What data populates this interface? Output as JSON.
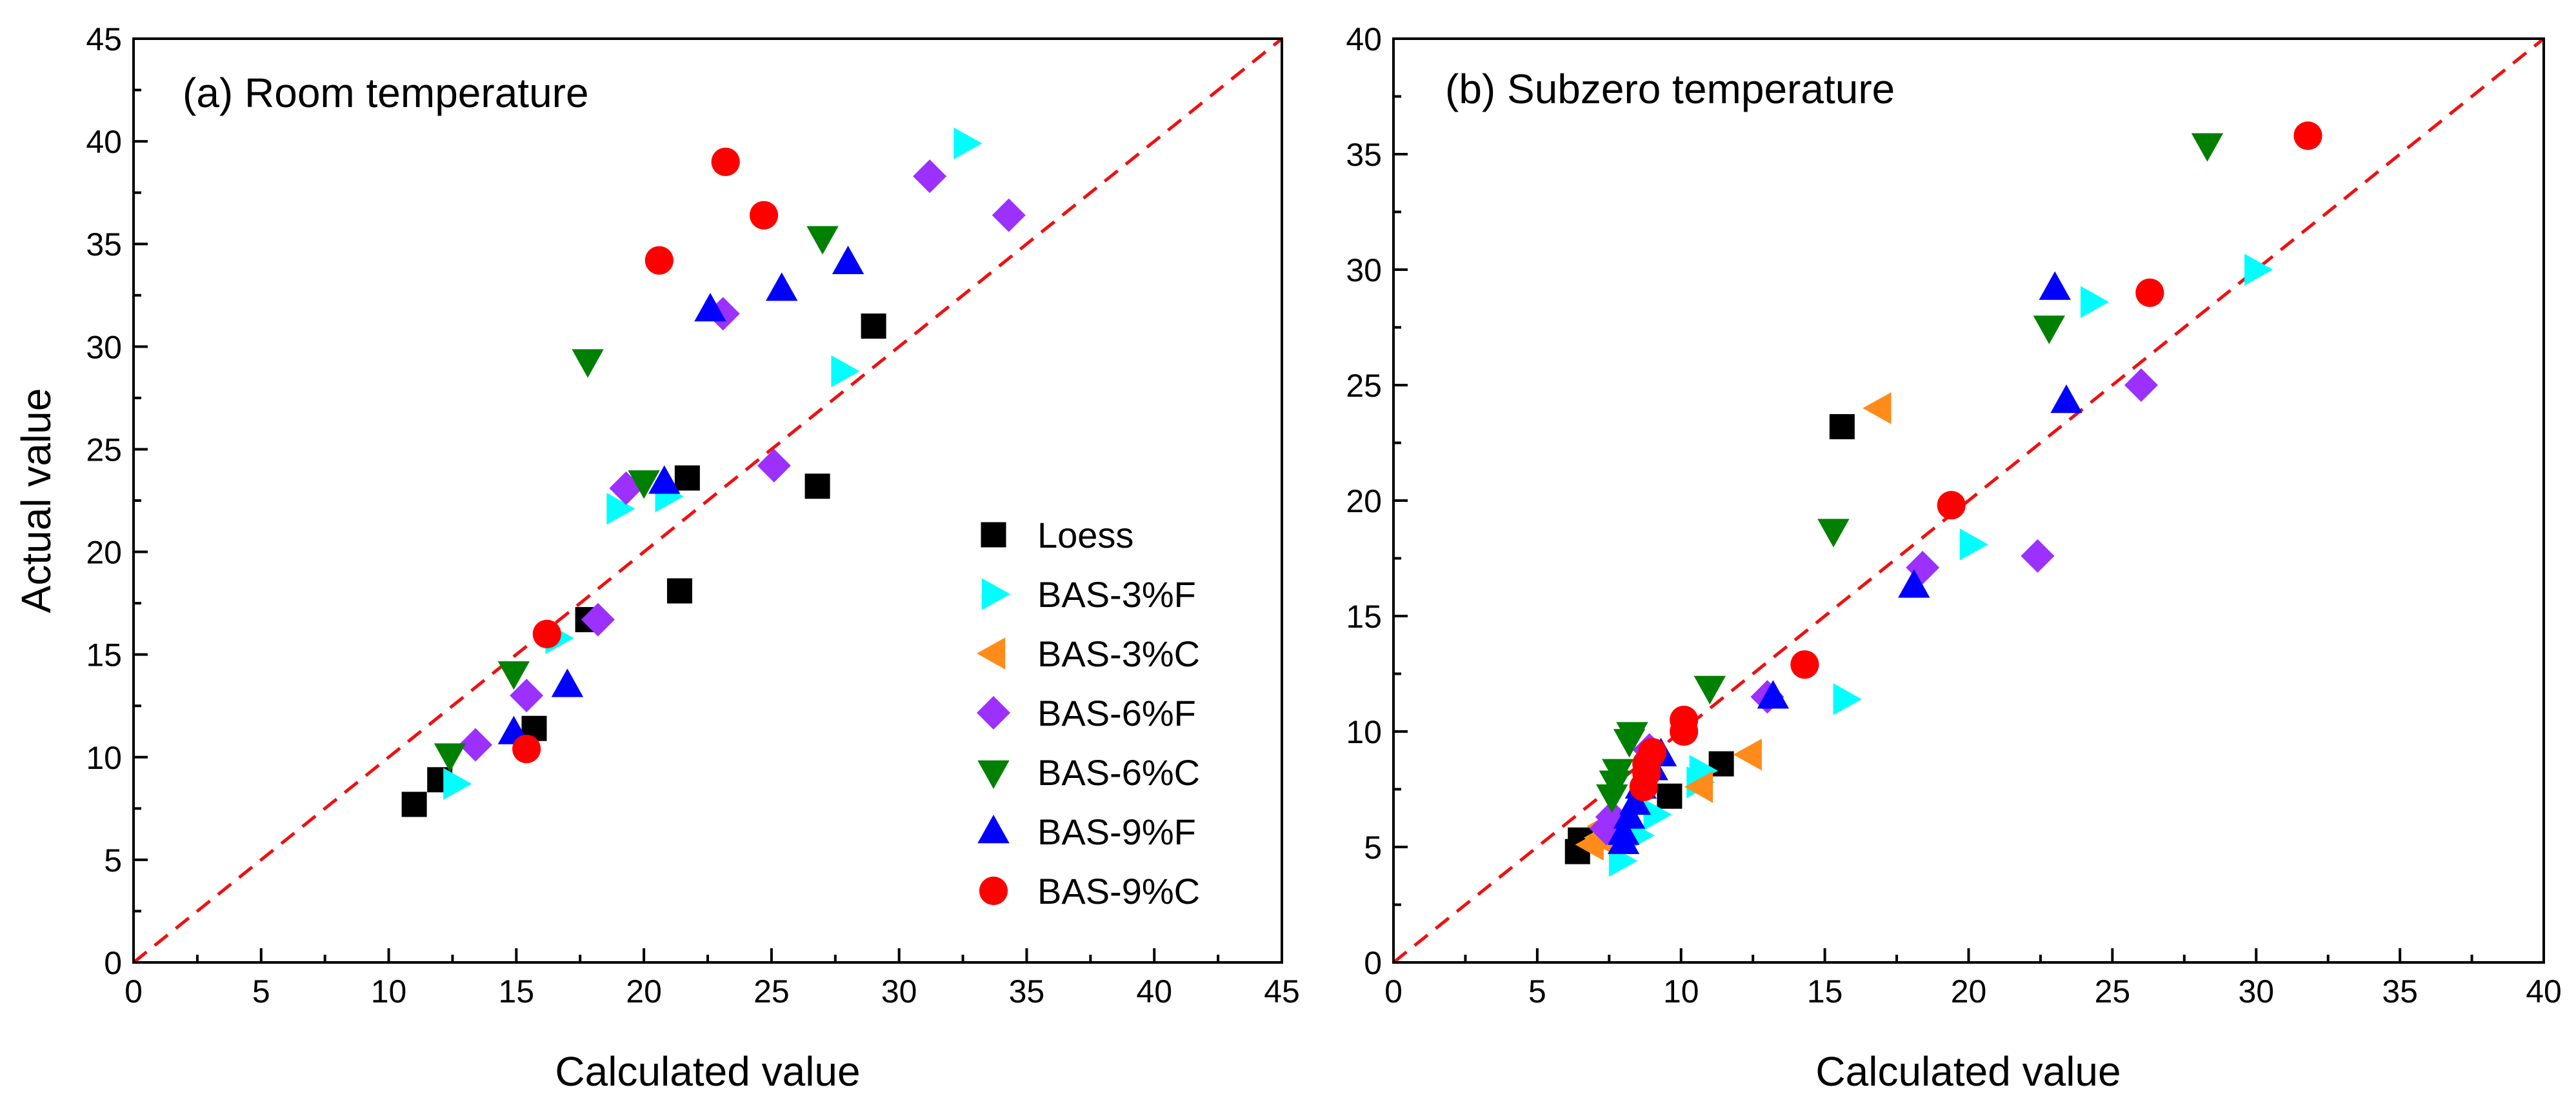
{
  "chart_data": [
    {
      "type": "scatter",
      "panel": "a",
      "title": "(a) Room temperature",
      "xlabel": "Calculated value",
      "ylabel": "Actual value",
      "xlim": [
        0,
        45
      ],
      "ylim": [
        0,
        45
      ],
      "xticks": [
        0,
        5,
        10,
        15,
        20,
        25,
        30,
        35,
        40,
        45
      ],
      "yticks": [
        0,
        5,
        10,
        15,
        20,
        25,
        30,
        35,
        40,
        45
      ],
      "reference_line": {
        "x": [
          0,
          45
        ],
        "y": [
          0,
          45
        ],
        "style": "dashed",
        "color": "#ee1111"
      },
      "grid": false,
      "legend": {
        "position": "bottom-right"
      },
      "series": [
        {
          "name": "Loess",
          "marker": "square",
          "color": "#000000",
          "points": [
            [
              11,
              7.7
            ],
            [
              12,
              8.9
            ],
            [
              15.7,
              11.4
            ],
            [
              17.8,
              16.7
            ],
            [
              21.4,
              18.1
            ],
            [
              21.7,
              23.6
            ],
            [
              26.8,
              23.2
            ],
            [
              29,
              31
            ]
          ]
        },
        {
          "name": "BAS-3%F",
          "marker": "triangle-right",
          "color": "#00ffff",
          "points": [
            [
              12.6,
              8.7
            ],
            [
              16.6,
              15.8
            ],
            [
              19,
              22.1
            ],
            [
              20.9,
              22.7
            ],
            [
              27.8,
              28.8
            ],
            [
              32.6,
              39.9
            ]
          ]
        },
        {
          "name": "BAS-3%C",
          "marker": "triangle-left",
          "color": "#ff8c1a",
          "points": []
        },
        {
          "name": "BAS-6%F",
          "marker": "diamond",
          "color": "#9b30ff",
          "points": [
            [
              13.4,
              10.6
            ],
            [
              15.4,
              13
            ],
            [
              18.2,
              16.7
            ],
            [
              19.3,
              23.1
            ],
            [
              23.1,
              31.6
            ],
            [
              25.1,
              24.2
            ],
            [
              31.2,
              38.3
            ],
            [
              34.3,
              36.4
            ]
          ]
        },
        {
          "name": "BAS-6%C",
          "marker": "triangle-down",
          "color": "#008000",
          "points": [
            [
              12.4,
              10.1
            ],
            [
              14.9,
              14.1
            ],
            [
              17.8,
              29.3
            ],
            [
              20,
              23.4
            ],
            [
              27,
              35.3
            ]
          ]
        },
        {
          "name": "BAS-9%F",
          "marker": "triangle-up",
          "color": "#0000ff",
          "points": [
            [
              14.9,
              11.2
            ],
            [
              17,
              13.5
            ],
            [
              20.8,
              23.4
            ],
            [
              22.6,
              31.8
            ],
            [
              25.4,
              32.8
            ],
            [
              28,
              34.1
            ]
          ]
        },
        {
          "name": "BAS-9%C",
          "marker": "circle",
          "color": "#ff0000",
          "points": [
            [
              15.4,
              10.4
            ],
            [
              16.2,
              16
            ],
            [
              20.6,
              34.2
            ],
            [
              23.2,
              39
            ],
            [
              24.7,
              36.4
            ]
          ]
        }
      ]
    },
    {
      "type": "scatter",
      "panel": "b",
      "title": "(b) Subzero temperature",
      "xlabel": "Calculated value",
      "ylabel": "",
      "xlim": [
        0,
        40
      ],
      "ylim": [
        0,
        40
      ],
      "xticks": [
        0,
        5,
        10,
        15,
        20,
        25,
        30,
        35,
        40
      ],
      "yticks": [
        0,
        5,
        10,
        15,
        20,
        25,
        30,
        35,
        40
      ],
      "reference_line": {
        "x": [
          0,
          40
        ],
        "y": [
          0,
          40
        ],
        "style": "dashed",
        "color": "#ee1111"
      },
      "grid": false,
      "series": [
        {
          "name": "Loess",
          "marker": "square",
          "color": "#000000",
          "points": [
            [
              6.4,
              4.8
            ],
            [
              6.5,
              5.3
            ],
            [
              9.6,
              7.2
            ],
            [
              11.4,
              8.6
            ],
            [
              15.6,
              23.2
            ]
          ]
        },
        {
          "name": "BAS-3%F",
          "marker": "triangle-right",
          "color": "#00ffff",
          "points": [
            [
              7.9,
              4.4
            ],
            [
              8.5,
              5.5
            ],
            [
              9.1,
              6.4
            ],
            [
              10.6,
              7.8
            ],
            [
              10.7,
              8.3
            ],
            [
              15.7,
              11.4
            ],
            [
              20.1,
              18.1
            ],
            [
              24.3,
              28.6
            ],
            [
              30,
              30
            ]
          ]
        },
        {
          "name": "BAS-3%C",
          "marker": "triangle-left",
          "color": "#ff8c1a",
          "points": [
            [
              6.9,
              5.1
            ],
            [
              7.2,
              5.4
            ],
            [
              7.3,
              5.9
            ],
            [
              10.7,
              7.6
            ],
            [
              12.4,
              9
            ],
            [
              16.9,
              24
            ]
          ]
        },
        {
          "name": "BAS-6%F",
          "marker": "diamond",
          "color": "#9b30ff",
          "points": [
            [
              7.4,
              5.8
            ],
            [
              7.6,
              6.3
            ],
            [
              8.9,
              9.2
            ],
            [
              13,
              11.5
            ],
            [
              18.4,
              17.1
            ],
            [
              22.4,
              17.6
            ],
            [
              26,
              25
            ]
          ]
        },
        {
          "name": "BAS-6%C",
          "marker": "triangle-down",
          "color": "#008000",
          "points": [
            [
              7.6,
              7.2
            ],
            [
              7.7,
              7.8
            ],
            [
              7.8,
              8.3
            ],
            [
              8.2,
              9.6
            ],
            [
              8.3,
              9.9
            ],
            [
              11,
              11.9
            ],
            [
              15.3,
              18.7
            ],
            [
              22.8,
              27.5
            ],
            [
              28.3,
              35.4
            ]
          ]
        },
        {
          "name": "BAS-9%F",
          "marker": "triangle-up",
          "color": "#0000ff",
          "points": [
            [
              8,
              5.2
            ],
            [
              8,
              5.6
            ],
            [
              8.2,
              6.3
            ],
            [
              8.4,
              6.9
            ],
            [
              8.6,
              7.6
            ],
            [
              9,
              8.4
            ],
            [
              9.3,
              9
            ],
            [
              13.2,
              11.5
            ],
            [
              18.1,
              16.3
            ],
            [
              23,
              29.2
            ],
            [
              23.4,
              24.3
            ]
          ]
        },
        {
          "name": "BAS-9%C",
          "marker": "circle",
          "color": "#ff0000",
          "points": [
            [
              8.7,
              7.6
            ],
            [
              8.8,
              8.2
            ],
            [
              8.8,
              8.6
            ],
            [
              9,
              9.1
            ],
            [
              10.1,
              10
            ],
            [
              10.1,
              10.5
            ],
            [
              14.3,
              12.9
            ],
            [
              19.4,
              19.8
            ],
            [
              26.3,
              29
            ],
            [
              31.8,
              35.8
            ]
          ]
        }
      ]
    }
  ]
}
